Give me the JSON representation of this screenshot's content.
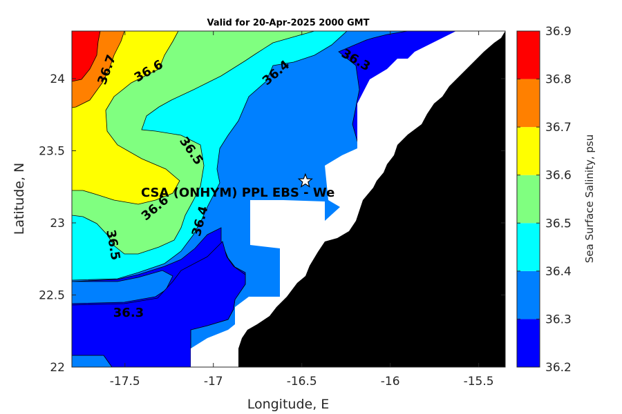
{
  "chart_data": {
    "type": "contour",
    "title": "Valid for 20-Apr-2025 2000 GMT",
    "xlabel": "Longitude, E",
    "ylabel": "Latitude, N",
    "xlim": [
      -17.8,
      -15.35
    ],
    "ylim": [
      22.0,
      24.33
    ],
    "x_ticks": [
      "-17.5",
      "-17",
      "-16.5",
      "-16",
      "-15.5"
    ],
    "x_tick_values": [
      -17.5,
      -17.0,
      -16.5,
      -16.0,
      -15.5
    ],
    "y_ticks": [
      "22",
      "22.5",
      "23",
      "23.5",
      "24"
    ],
    "y_tick_values": [
      22.0,
      22.5,
      23.0,
      23.5,
      24.0
    ],
    "colorbar": {
      "label": "Sea Surface Salinity, psu",
      "ticks": [
        "36.2",
        "36.3",
        "36.4",
        "36.5",
        "36.6",
        "36.7",
        "36.8",
        "36.9"
      ],
      "levels": [
        36.2,
        36.3,
        36.4,
        36.5,
        36.6,
        36.7,
        36.8,
        36.9
      ],
      "colors": [
        "#0000ff",
        "#0080ff",
        "#00ffff",
        "#80ff80",
        "#ffff00",
        "#ff8000",
        "#ff0000"
      ]
    },
    "contour_labels": [
      "36.7",
      "36.6",
      "36.5",
      "36.6",
      "36.5",
      "36.4",
      "36.4",
      "36.3",
      "36.3"
    ],
    "site": {
      "label": "CSA (ONHYM) PPL EBS  - We",
      "lon": -16.48,
      "lat": 23.29,
      "marker": "star"
    },
    "land_color": "#000000",
    "nodata_color": "#ffffff"
  }
}
